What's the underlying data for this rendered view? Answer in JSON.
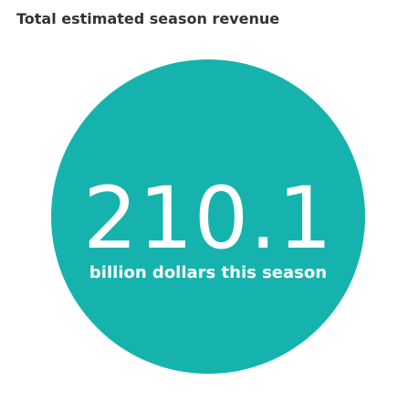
{
  "title": "Total estimated season revenue",
  "colors": {
    "circle": "#16b3ae",
    "text_on_circle": "#ffffff",
    "title": "#333333"
  },
  "chart_data": {
    "type": "kpi",
    "title": "Total estimated season revenue",
    "value": 210.1,
    "value_text": "210.1",
    "unit_label": "billion dollars this season"
  }
}
